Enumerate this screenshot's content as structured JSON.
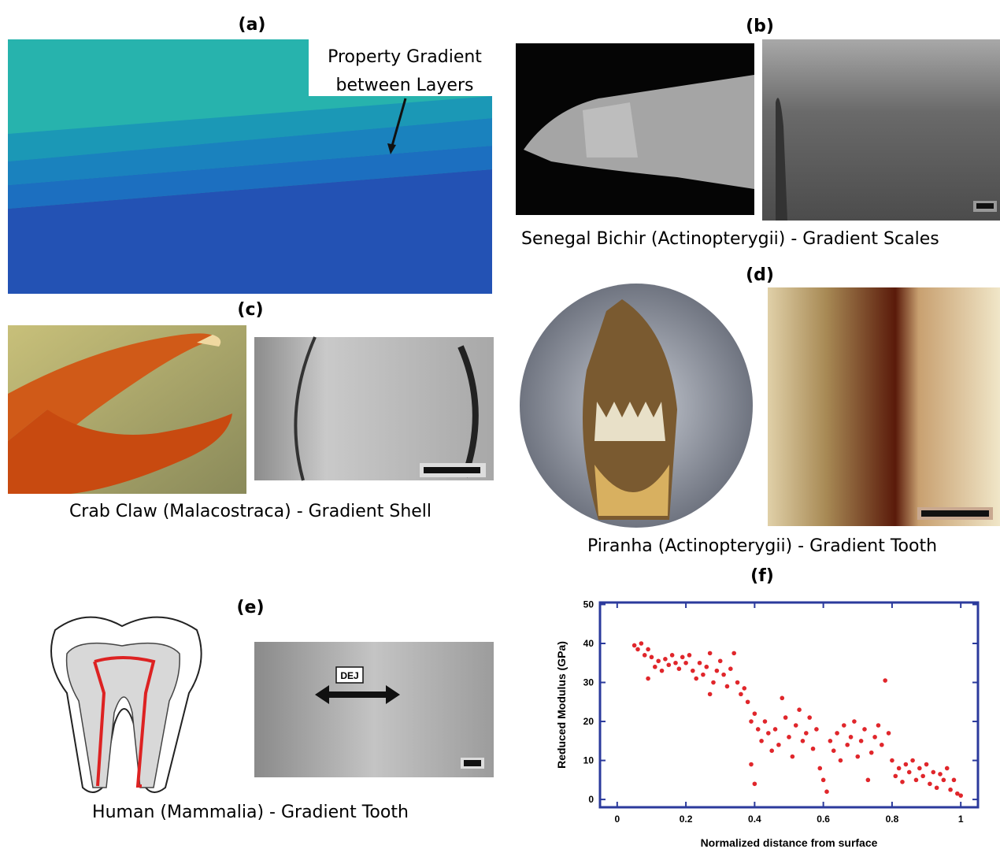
{
  "panels": {
    "a": {
      "label": "(a)",
      "annotation": [
        "Property Gradient",
        "between Layers"
      ]
    },
    "b": {
      "label": "(b)",
      "caption": "Senegal Bichir (Actinopterygii) - Gradient Scales"
    },
    "c": {
      "label": "(c)",
      "caption": "Crab Claw (Malacostraca) - Gradient Shell"
    },
    "d": {
      "label": "(d)",
      "caption": "Piranha (Actinopterygii) - Gradient Tooth"
    },
    "e": {
      "label": "(e)",
      "caption": "Human (Mammalia) - Gradient Tooth",
      "annotation": "DEJ"
    },
    "f": {
      "label": "(f)"
    }
  },
  "chart_data": {
    "type": "scatter",
    "x_label": "Normalized distance from surface",
    "y_label": "Reduced Modulus (GPa)",
    "color": "#e0262b",
    "xlim": [
      -0.05,
      1.05
    ],
    "ylim": [
      -2,
      50.5
    ],
    "xticks": [
      0,
      0.2,
      0.4,
      0.6,
      0.8,
      1
    ],
    "yticks": [
      0,
      10,
      20,
      30,
      40,
      50
    ],
    "x": [
      0.05,
      0.06,
      0.07,
      0.08,
      0.09,
      0.09,
      0.1,
      0.11,
      0.12,
      0.13,
      0.14,
      0.15,
      0.16,
      0.17,
      0.18,
      0.19,
      0.2,
      0.21,
      0.22,
      0.23,
      0.24,
      0.25,
      0.26,
      0.27,
      0.27,
      0.28,
      0.29,
      0.3,
      0.31,
      0.32,
      0.33,
      0.34,
      0.35,
      0.36,
      0.37,
      0.38,
      0.39,
      0.39,
      0.4,
      0.4,
      0.41,
      0.42,
      0.43,
      0.44,
      0.45,
      0.46,
      0.47,
      0.48,
      0.49,
      0.5,
      0.51,
      0.52,
      0.53,
      0.54,
      0.55,
      0.56,
      0.57,
      0.58,
      0.59,
      0.6,
      0.61,
      0.62,
      0.63,
      0.64,
      0.65,
      0.66,
      0.67,
      0.68,
      0.69,
      0.7,
      0.71,
      0.72,
      0.73,
      0.74,
      0.75,
      0.76,
      0.77,
      0.78,
      0.79,
      0.8,
      0.81,
      0.82,
      0.83,
      0.84,
      0.85,
      0.86,
      0.87,
      0.88,
      0.89,
      0.9,
      0.91,
      0.92,
      0.93,
      0.94,
      0.95,
      0.96,
      0.97,
      0.98,
      0.99,
      1.0
    ],
    "values": [
      39.5,
      38.5,
      40,
      37,
      38.5,
      31,
      36.5,
      34,
      35.5,
      33,
      36,
      34.5,
      37,
      35,
      33.5,
      36.5,
      35,
      37,
      33,
      31,
      35,
      32,
      34,
      37.5,
      27,
      30,
      33,
      35.5,
      32,
      29,
      33.5,
      37.5,
      30,
      27,
      28.5,
      25,
      20,
      9,
      4,
      22,
      18,
      15,
      20,
      17,
      12.5,
      18,
      14,
      26,
      21,
      16,
      11,
      19,
      23,
      15,
      17,
      21,
      13,
      18,
      8,
      5,
      2,
      15,
      12.5,
      17,
      10,
      19,
      14,
      16,
      20,
      11,
      15,
      18,
      5,
      12,
      16,
      19,
      14,
      30.5,
      17,
      10,
      6,
      8,
      4.5,
      9,
      7,
      10,
      5,
      8,
      6,
      9,
      4,
      7,
      3,
      6.5,
      5,
      8,
      2.5,
      5,
      1.5,
      1
    ]
  }
}
